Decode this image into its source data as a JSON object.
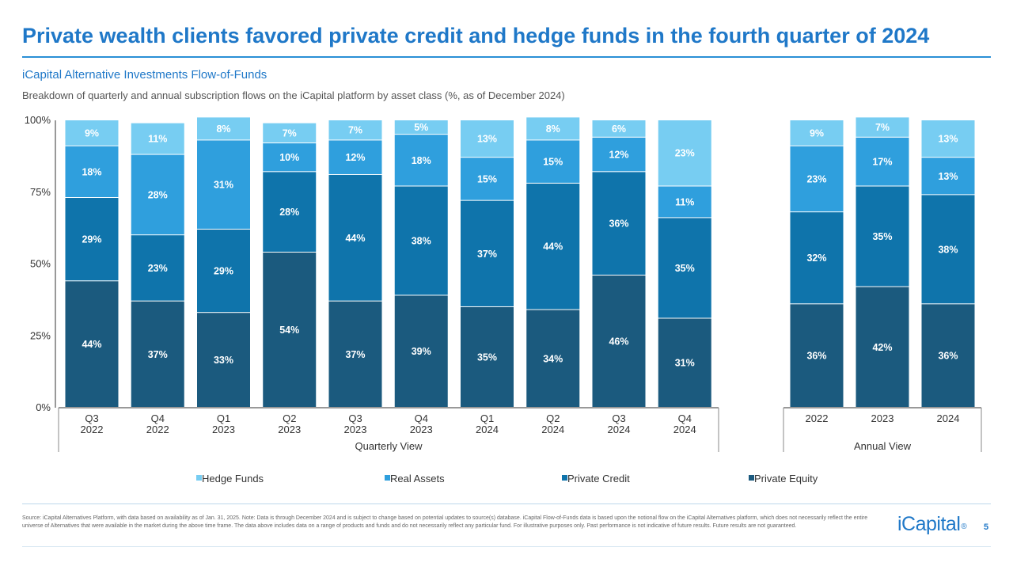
{
  "page": {
    "title": "Private wealth clients favored private credit and hedge funds in the fourth quarter of 2024",
    "subtitle": "iCapital Alternative Investments Flow-of-Funds",
    "description": "Breakdown of quarterly and annual subscription flows on the iCapital platform by asset class (%, as of December 2024)",
    "source": "Source: iCapital Alternatives Platform, with data based on availability as of Jan. 31, 2025. Note: Data is through December 2024 and is subject to change based on potential updates to source(s) database. iCapital Flow-of-Funds data is based upon the notional flow on the iCapital Alternatives platform, which does not necessarily reflect the entire universe of Alternatives that were available in the market during the above time frame. The data above includes data on a range of products and funds and do not necessarily reflect any particular fund. For illustrative purposes only. Past performance is not indicative of future results. Future results are not guaranteed.",
    "logo": "iCapital",
    "logo_mark": "®",
    "page_number": "5"
  },
  "chart_data": {
    "type": "bar",
    "stacked": true,
    "y_ticks": [
      "100%",
      "75%",
      "50%",
      "25%",
      "0%"
    ],
    "ylim": [
      0,
      100
    ],
    "legend_position": "bottom",
    "colors": {
      "Private Equity": "#1b5a7e",
      "Private Credit": "#0f74ab",
      "Real Assets": "#2f9fdd",
      "Hedge Funds": "#77cdf2",
      "axis": "#333333",
      "text": "#333333",
      "label_dark": "#222222",
      "label_light": "#ffffff"
    },
    "series_order": [
      "Private Equity",
      "Private Credit",
      "Real Assets",
      "Hedge Funds"
    ],
    "legend_order": [
      "Hedge Funds",
      "Real Assets",
      "Private Credit",
      "Private Equity"
    ],
    "groups": [
      {
        "name": "Quarterly View",
        "categories": [
          [
            "Q3",
            "2022"
          ],
          [
            "Q4",
            "2022"
          ],
          [
            "Q1",
            "2023"
          ],
          [
            "Q2",
            "2023"
          ],
          [
            "Q3",
            "2023"
          ],
          [
            "Q4",
            "2023"
          ],
          [
            "Q1",
            "2024"
          ],
          [
            "Q2",
            "2024"
          ],
          [
            "Q3",
            "2024"
          ],
          [
            "Q4",
            "2024"
          ]
        ],
        "series": [
          {
            "name": "Private Equity",
            "values": [
              44,
              37,
              33,
              54,
              37,
              39,
              35,
              34,
              46,
              31
            ]
          },
          {
            "name": "Private Credit",
            "values": [
              29,
              23,
              29,
              28,
              44,
              38,
              37,
              44,
              36,
              35
            ]
          },
          {
            "name": "Real Assets",
            "values": [
              18,
              28,
              31,
              10,
              12,
              18,
              15,
              15,
              12,
              11
            ]
          },
          {
            "name": "Hedge Funds",
            "values": [
              9,
              11,
              8,
              7,
              7,
              5,
              13,
              8,
              6,
              23
            ]
          }
        ]
      },
      {
        "name": "Annual View",
        "categories": [
          [
            "2022"
          ],
          [
            "2023"
          ],
          [
            "2024"
          ]
        ],
        "series": [
          {
            "name": "Private Equity",
            "values": [
              36,
              42,
              36
            ]
          },
          {
            "name": "Private Credit",
            "values": [
              32,
              35,
              38
            ]
          },
          {
            "name": "Real Assets",
            "values": [
              23,
              17,
              13
            ]
          },
          {
            "name": "Hedge Funds",
            "values": [
              9,
              7,
              13
            ]
          }
        ]
      }
    ]
  }
}
